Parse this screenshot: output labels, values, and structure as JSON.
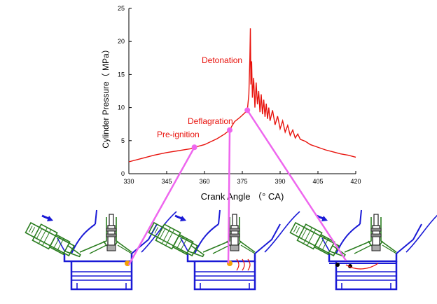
{
  "chart_data": {
    "type": "line",
    "xlabel": "Crank Angle （° CA)",
    "ylabel": "Cylinder Pressure（ MPa）",
    "xlim": [
      330,
      420
    ],
    "ylim": [
      0,
      25
    ],
    "x_ticks": [
      "330",
      "345",
      "360",
      "375",
      "390",
      "405",
      "420"
    ],
    "y_ticks": [
      "0",
      "5",
      "10",
      "15",
      "20",
      "25"
    ],
    "grid": false,
    "series": [
      {
        "color": "#e8120c",
        "x": [
          330,
          335,
          340,
          345,
          350,
          355,
          356,
          360,
          365,
          368,
          370,
          371,
          372,
          374,
          376,
          377,
          377.6,
          378.0,
          378.2,
          378.4,
          378.7,
          379,
          379.5,
          380,
          380.5,
          381,
          381.5,
          382,
          382.5,
          383,
          383.5,
          384,
          384.5,
          385,
          385.5,
          386,
          387,
          388,
          389,
          390,
          391,
          392,
          393,
          394,
          395,
          396,
          397,
          398,
          400,
          402,
          405,
          408,
          411,
          414,
          417,
          420
        ],
        "y": [
          1.8,
          2.3,
          2.8,
          3.2,
          3.5,
          3.8,
          4.0,
          4.4,
          5.3,
          6.0,
          6.6,
          7.3,
          7.9,
          8.5,
          9.2,
          9.6,
          12.0,
          17.5,
          22.0,
          13.5,
          17.0,
          11.5,
          14.5,
          10.0,
          13.8,
          10.5,
          12.5,
          9.3,
          12.0,
          9.0,
          11.2,
          8.6,
          10.6,
          8.3,
          10.0,
          8.0,
          9.6,
          7.4,
          8.7,
          6.8,
          8.0,
          6.3,
          7.3,
          5.8,
          6.6,
          5.4,
          6.0,
          5.2,
          4.9,
          4.4,
          4.0,
          3.6,
          3.3,
          3.0,
          2.8,
          2.5
        ]
      }
    ],
    "annotations": [
      {
        "text": "Pre-ignition",
        "x": 356,
        "y": 4.0
      },
      {
        "text": "Deflagration",
        "x": 370,
        "y": 6.6
      },
      {
        "text": "Detonation",
        "x": 377,
        "y": 9.6
      }
    ],
    "marker_color": "#ee66ee"
  }
}
